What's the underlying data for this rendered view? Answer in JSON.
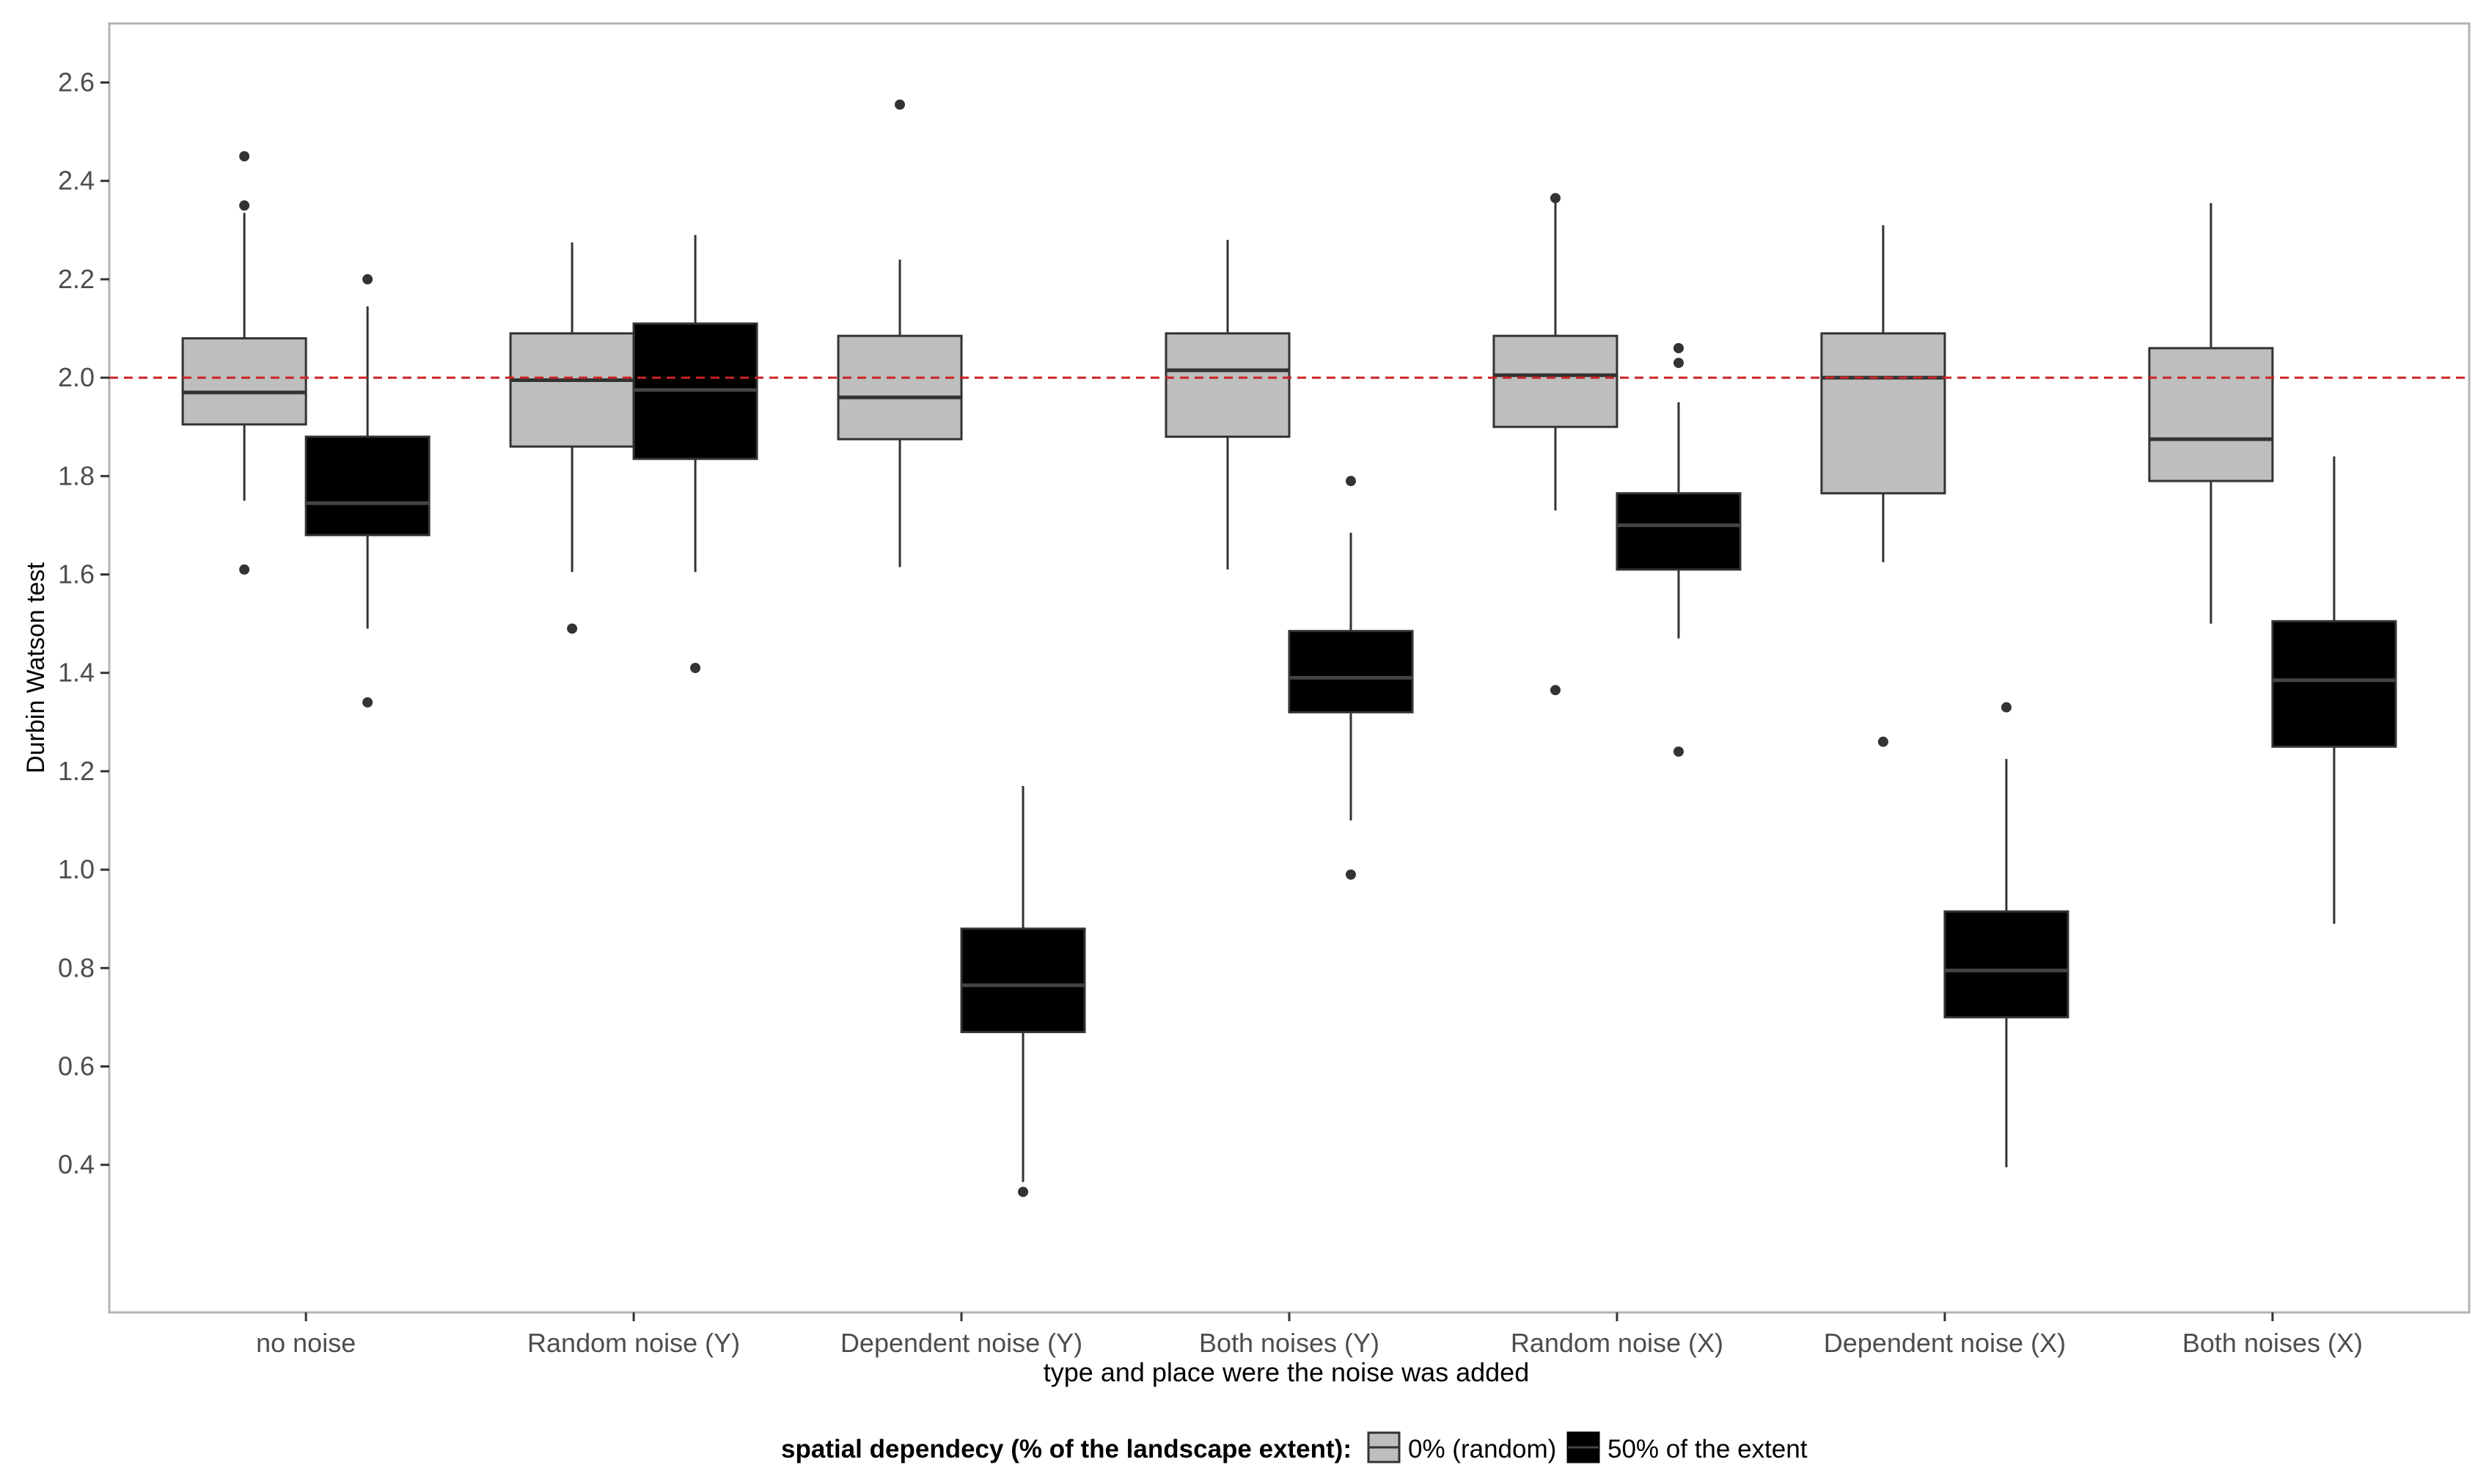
{
  "chart_data": {
    "type": "boxplot",
    "title": "",
    "xlabel": "type and place were the noise was added",
    "ylabel": "Durbin Watson test",
    "ylim": [
      0.1,
      2.72
    ],
    "yticks": [
      0.4,
      0.6,
      0.8,
      1.0,
      1.2,
      1.4,
      1.6,
      1.8,
      2.0,
      2.2,
      2.4,
      2.6
    ],
    "ytick_labels": [
      "0.4",
      "0.6",
      "0.8",
      "1.0",
      "1.2",
      "1.4",
      "1.6",
      "1.8",
      "2.0",
      "2.2",
      "2.4",
      "2.6"
    ],
    "grid": false,
    "reference_line": {
      "y": 2.0,
      "color": "#cc2222",
      "style": "dashed"
    },
    "categories": [
      "no noise",
      "Random noise (Y)",
      "Dependent noise (Y)",
      "Both noises (Y)",
      "Random noise (X)",
      "Dependent noise (X)",
      "Both noises (X)"
    ],
    "legend": {
      "title": "spatial dependecy (% of the landscape extent):",
      "position": "bottom",
      "entries": [
        "0% (random)",
        "50% of the extent"
      ]
    },
    "series": [
      {
        "name": "0% (random)",
        "fill": "#bebebe",
        "median_color": "#333333",
        "boxes": [
          {
            "category": "no noise",
            "whisker_low": 1.75,
            "q1": 1.905,
            "median": 1.97,
            "q3": 2.08,
            "whisker_high": 2.335,
            "outliers": [
              1.61,
              2.35,
              2.45
            ]
          },
          {
            "category": "Random noise (Y)",
            "whisker_low": 1.605,
            "q1": 1.86,
            "median": 1.995,
            "q3": 2.09,
            "whisker_high": 2.275,
            "outliers": [
              1.49
            ]
          },
          {
            "category": "Dependent noise (Y)",
            "whisker_low": 1.615,
            "q1": 1.875,
            "median": 1.96,
            "q3": 2.085,
            "whisker_high": 2.24,
            "outliers": [
              2.555
            ]
          },
          {
            "category": "Both noises (Y)",
            "whisker_low": 1.61,
            "q1": 1.88,
            "median": 2.015,
            "q3": 2.09,
            "whisker_high": 2.28,
            "outliers": []
          },
          {
            "category": "Random noise (X)",
            "whisker_low": 1.73,
            "q1": 1.9,
            "median": 2.005,
            "q3": 2.085,
            "whisker_high": 2.36,
            "outliers": [
              1.365,
              2.365
            ]
          },
          {
            "category": "Dependent noise (X)",
            "whisker_low": 1.625,
            "q1": 1.765,
            "median": 2.0,
            "q3": 2.09,
            "whisker_high": 2.31,
            "outliers": [
              1.26
            ]
          },
          {
            "category": "Both noises (X)",
            "whisker_low": 1.5,
            "q1": 1.79,
            "median": 1.875,
            "q3": 2.06,
            "whisker_high": 2.355,
            "outliers": []
          }
        ]
      },
      {
        "name": "50% of the extent",
        "fill": "#000000",
        "median_color": "#444444",
        "boxes": [
          {
            "category": "no noise",
            "whisker_low": 1.49,
            "q1": 1.68,
            "median": 1.745,
            "q3": 1.88,
            "whisker_high": 2.145,
            "outliers": [
              1.34,
              2.2
            ]
          },
          {
            "category": "Random noise (Y)",
            "whisker_low": 1.605,
            "q1": 1.835,
            "median": 1.975,
            "q3": 2.11,
            "whisker_high": 2.29,
            "outliers": [
              1.41
            ]
          },
          {
            "category": "Dependent noise (Y)",
            "whisker_low": 0.365,
            "q1": 0.67,
            "median": 0.765,
            "q3": 0.88,
            "whisker_high": 1.17,
            "outliers": [
              0.345
            ]
          },
          {
            "category": "Both noises (Y)",
            "whisker_low": 1.1,
            "q1": 1.32,
            "median": 1.39,
            "q3": 1.485,
            "whisker_high": 1.685,
            "outliers": [
              0.99,
              1.79
            ]
          },
          {
            "category": "Random noise (X)",
            "whisker_low": 1.47,
            "q1": 1.61,
            "median": 1.7,
            "q3": 1.765,
            "whisker_high": 1.95,
            "outliers": [
              1.24,
              2.03,
              2.06
            ]
          },
          {
            "category": "Dependent noise (X)",
            "whisker_low": 0.395,
            "q1": 0.7,
            "median": 0.795,
            "q3": 0.915,
            "whisker_high": 1.225,
            "outliers": [
              1.33
            ]
          },
          {
            "category": "Both noises (X)",
            "whisker_low": 0.89,
            "q1": 1.25,
            "median": 1.385,
            "q3": 1.505,
            "whisker_high": 1.84,
            "outliers": []
          }
        ]
      }
    ]
  }
}
